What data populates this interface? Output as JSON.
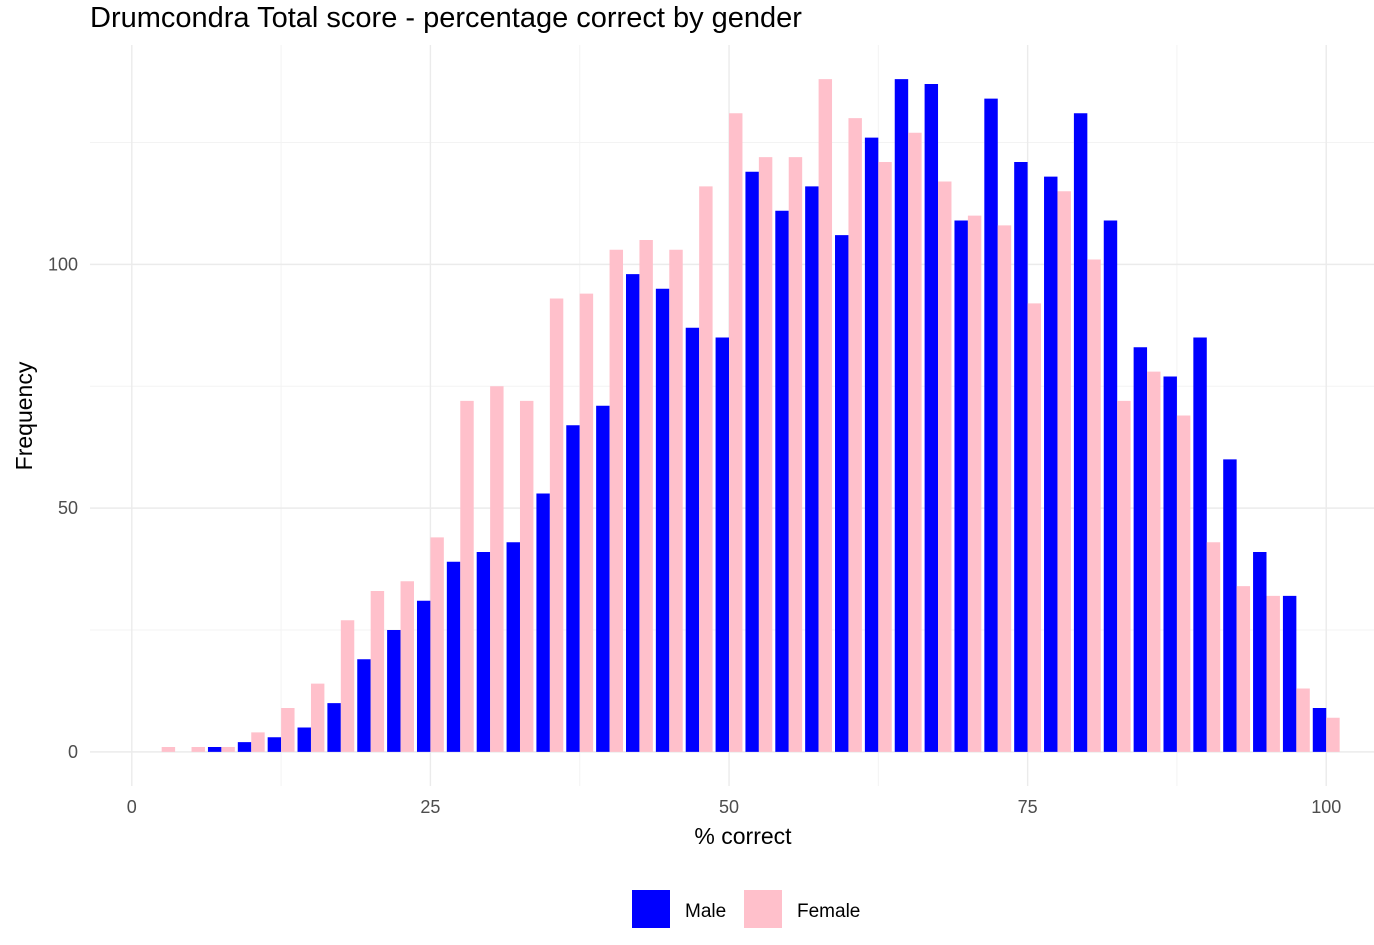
{
  "chart_data": {
    "type": "bar",
    "title": "Drumcondra Total score - percentage correct by gender",
    "xlabel": "% correct",
    "ylabel": "Frequency",
    "xlim": [
      -3.5,
      104
    ],
    "ylim": [
      -7,
      145
    ],
    "x_ticks": [
      0,
      25,
      50,
      75,
      100
    ],
    "y_ticks": [
      0,
      50,
      100
    ],
    "grid": true,
    "legend": "bottom",
    "series": [
      {
        "name": "Male",
        "color": "#0000ff",
        "x": [
          2.5,
          5,
          7.5,
          10,
          12.5,
          15,
          17.5,
          20,
          22.5,
          25,
          27.5,
          30,
          32.5,
          35,
          37.5,
          40,
          42.5,
          45,
          47.5,
          50,
          52.5,
          55,
          57.5,
          60,
          62.5,
          65,
          67.5,
          70,
          72.5,
          75,
          77.5,
          80,
          82.5,
          85,
          87.5,
          90,
          92.5,
          95,
          97.5,
          100
        ],
        "values": [
          0,
          0,
          1,
          2,
          3,
          5,
          10,
          19,
          25,
          31,
          39,
          41,
          43,
          53,
          67,
          71,
          98,
          95,
          87,
          85,
          119,
          111,
          116,
          106,
          126,
          138,
          137,
          109,
          134,
          121,
          118,
          131,
          109,
          83,
          77,
          85,
          60,
          41,
          32,
          9
        ]
      },
      {
        "name": "Female",
        "color": "#ffc0cb",
        "x": [
          2.5,
          5,
          7.5,
          10,
          12.5,
          15,
          17.5,
          20,
          22.5,
          25,
          27.5,
          30,
          32.5,
          35,
          37.5,
          40,
          42.5,
          45,
          47.5,
          50,
          52.5,
          55,
          57.5,
          60,
          62.5,
          65,
          67.5,
          70,
          72.5,
          75,
          77.5,
          80,
          82.5,
          85,
          87.5,
          90,
          92.5,
          95,
          97.5,
          100
        ],
        "values": [
          1,
          1,
          1,
          4,
          9,
          14,
          27,
          33,
          35,
          44,
          72,
          75,
          72,
          93,
          94,
          103,
          105,
          103,
          116,
          131,
          122,
          122,
          138,
          130,
          121,
          127,
          117,
          110,
          108,
          92,
          115,
          101,
          72,
          78,
          69,
          43,
          34,
          32,
          13,
          7
        ]
      }
    ]
  },
  "colors": {
    "male": "#0000ff",
    "female": "#ffc0cb"
  }
}
